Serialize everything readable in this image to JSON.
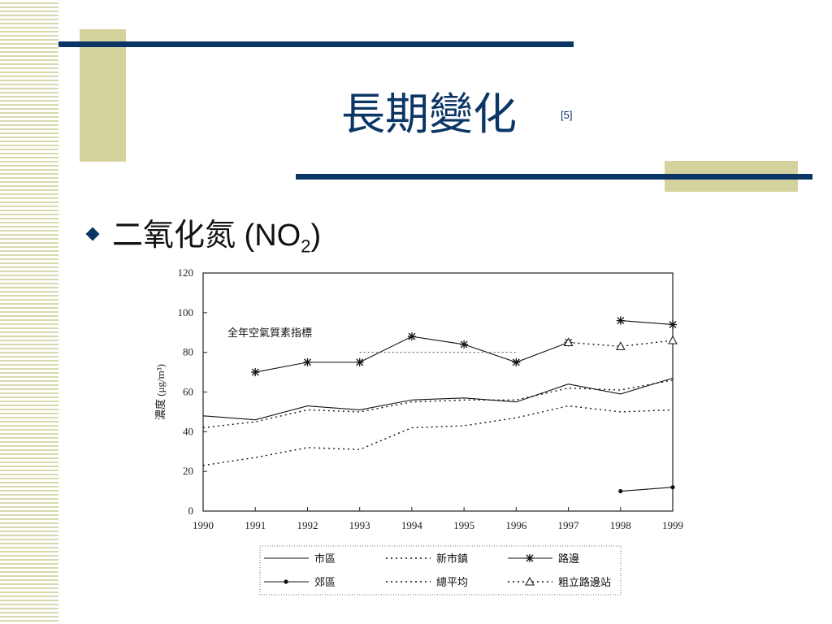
{
  "slide": {
    "title": "長期變化",
    "title_ref": "[5]",
    "bullet_prefix": "二氧化氮 (NO",
    "bullet_sub": "2",
    "bullet_suffix": ")",
    "accent_color": "#0b3565",
    "block_color": "#d4d39d"
  },
  "chart_data": {
    "type": "line",
    "title": "",
    "annotation": "全年空氣質素指標",
    "ylabel": "濃度 (μg/m³)",
    "xlabel": "",
    "x": [
      "1990",
      "1991",
      "1992",
      "1993",
      "1994",
      "1995",
      "1996",
      "1997",
      "1998",
      "1999"
    ],
    "y_ticks": [
      "0",
      "20",
      "40",
      "60",
      "80",
      "100",
      "120"
    ],
    "ylim": [
      0,
      120
    ],
    "annotation_line": {
      "value": 80,
      "range": [
        "1993",
        "1996"
      ]
    },
    "grid": false,
    "legend_position": "bottom",
    "series": [
      {
        "name": "市區",
        "style": "solid",
        "marker": "none",
        "values": [
          48,
          46,
          53,
          51,
          56,
          57,
          55,
          64,
          59,
          67
        ]
      },
      {
        "name": "新市鎮",
        "style": "dotted",
        "marker": "none",
        "values": [
          23,
          27,
          32,
          31,
          42,
          43,
          47,
          53,
          50,
          51
        ]
      },
      {
        "name": "路邊",
        "style": "solid",
        "marker": "asterisk",
        "values": [
          null,
          70,
          75,
          75,
          88,
          84,
          75,
          85,
          null,
          null
        ]
      },
      {
        "name": "路邊",
        "style": "solid",
        "marker": "asterisk",
        "values": [
          null,
          null,
          null,
          null,
          null,
          null,
          null,
          null,
          96,
          94
        ]
      },
      {
        "name": "郊區",
        "style": "solid",
        "marker": "dot",
        "values": [
          null,
          null,
          null,
          null,
          null,
          null,
          null,
          null,
          10,
          12
        ]
      },
      {
        "name": "總平均",
        "style": "dotted",
        "marker": "none",
        "values": [
          42,
          45,
          51,
          50,
          55,
          56,
          56,
          62,
          61,
          66
        ]
      },
      {
        "name": "粗立路邊站",
        "style": "dotted",
        "marker": "triangle",
        "values": [
          null,
          null,
          null,
          null,
          null,
          null,
          null,
          85,
          83,
          86
        ]
      }
    ]
  }
}
